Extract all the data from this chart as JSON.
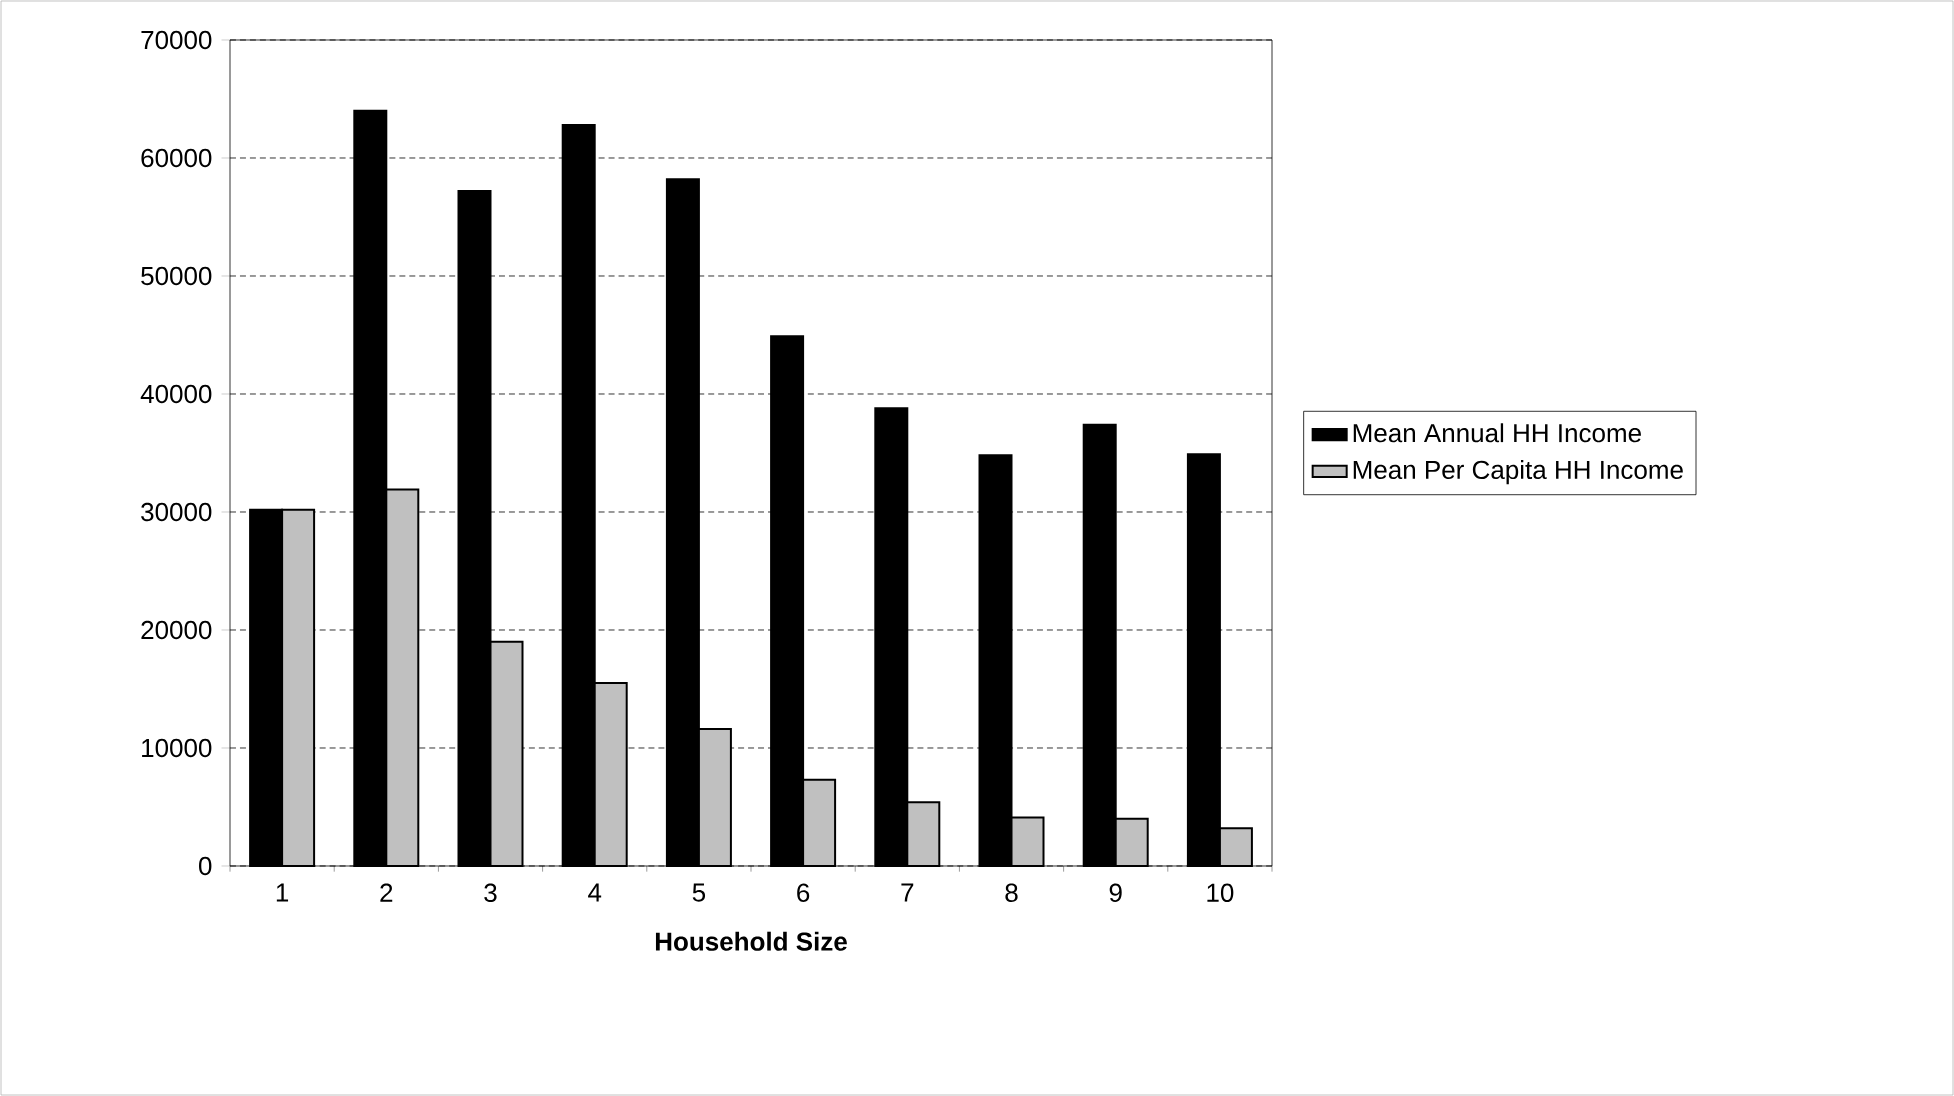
{
  "chart_data": {
    "type": "bar",
    "xlabel": "Household Size",
    "categories": [
      "1",
      "2",
      "3",
      "4",
      "5",
      "6",
      "7",
      "8",
      "9",
      "10"
    ],
    "series": [
      {
        "name": "Mean Annual HH Income",
        "color": "#000000",
        "values": [
          30200,
          64000,
          57200,
          62800,
          58200,
          44900,
          38800,
          34800,
          37400,
          34900
        ]
      },
      {
        "name": "Mean Per Capita HH Income",
        "color": "#c0c0c0",
        "values": [
          30200,
          31900,
          19000,
          15500,
          11600,
          7300,
          5400,
          4100,
          4000,
          3200
        ]
      }
    ],
    "ylim": [
      0,
      70000
    ],
    "yticks": [
      0,
      10000,
      20000,
      30000,
      40000,
      50000,
      60000,
      70000
    ],
    "grid": "y",
    "legend": "right"
  }
}
